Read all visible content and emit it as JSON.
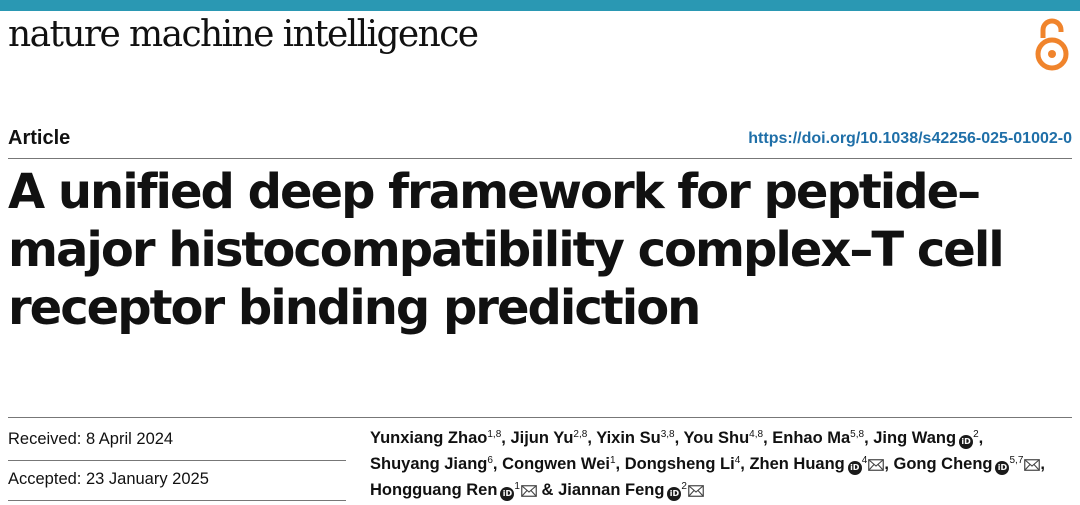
{
  "colors": {
    "top_bar": "#2a98b3",
    "doi_link": "#1f6fa8",
    "open_access_icon": "#f0842c"
  },
  "header": {
    "journal_name": "nature machine intelligence",
    "open_access_icon": "open-access-lock-icon"
  },
  "article": {
    "type": "Article",
    "doi": "https://doi.org/10.1038/s42256-025-01002-0",
    "title": "A unified deep framework for peptide–major histocompatibility complex–T cell receptor binding prediction"
  },
  "dates": {
    "received": "Received: 8 April 2024",
    "accepted": "Accepted: 23 January 2025"
  },
  "authors": [
    {
      "name": "Yunxiang Zhao",
      "sup": "1,8",
      "orcid": false,
      "email": false,
      "sep": ", "
    },
    {
      "name": "Jijun Yu",
      "sup": "2,8",
      "orcid": false,
      "email": false,
      "sep": ", "
    },
    {
      "name": "Yixin Su",
      "sup": "3,8",
      "orcid": false,
      "email": false,
      "sep": ", "
    },
    {
      "name": "You Shu",
      "sup": "4,8",
      "orcid": false,
      "email": false,
      "sep": ", "
    },
    {
      "name": "Enhao Ma",
      "sup": "5,8",
      "orcid": false,
      "email": false,
      "sep": ", "
    },
    {
      "name": "Jing Wang",
      "sup": "2",
      "orcid": true,
      "email": false,
      "sep": ", "
    },
    {
      "name": "Shuyang Jiang",
      "sup": "6",
      "orcid": false,
      "email": false,
      "sep": ", "
    },
    {
      "name": "Congwen Wei",
      "sup": "1",
      "orcid": false,
      "email": false,
      "sep": ", "
    },
    {
      "name": "Dongsheng Li",
      "sup": "4",
      "orcid": false,
      "email": false,
      "sep": ", "
    },
    {
      "name": "Zhen Huang",
      "sup": "4",
      "orcid": true,
      "email": true,
      "sep": ", "
    },
    {
      "name": "Gong Cheng",
      "sup": "5,7",
      "orcid": true,
      "email": true,
      "sep": ", "
    },
    {
      "name": "Hongguang Ren",
      "sup": "1",
      "orcid": true,
      "email": true,
      "sep": " & "
    },
    {
      "name": "Jiannan Feng",
      "sup": "2",
      "orcid": true,
      "email": true,
      "sep": ""
    }
  ]
}
